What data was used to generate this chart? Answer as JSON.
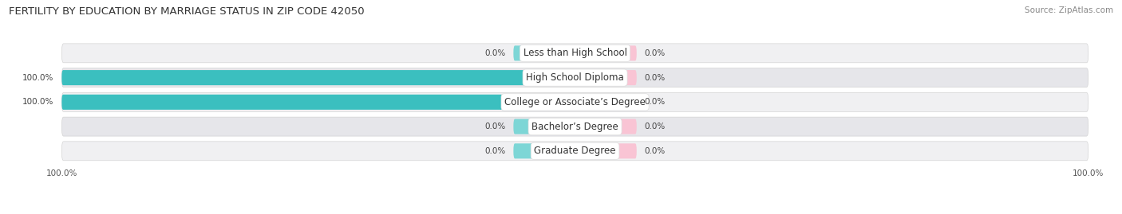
{
  "title": "FERTILITY BY EDUCATION BY MARRIAGE STATUS IN ZIP CODE 42050",
  "source": "Source: ZipAtlas.com",
  "categories": [
    "Less than High School",
    "High School Diploma",
    "College or Associate’s Degree",
    "Bachelor’s Degree",
    "Graduate Degree"
  ],
  "married_values": [
    0.0,
    100.0,
    100.0,
    0.0,
    0.0
  ],
  "unmarried_values": [
    0.0,
    0.0,
    0.0,
    0.0,
    0.0
  ],
  "married_color": "#3BBFBF",
  "unmarried_color": "#F5A0B8",
  "married_stub_color": "#7DD6D6",
  "unmarried_stub_color": "#F9C4D4",
  "row_bg_odd": "#F0F0F2",
  "row_bg_even": "#E6E6EA",
  "title_fontsize": 9.5,
  "source_fontsize": 7.5,
  "label_fontsize": 8.5,
  "value_fontsize": 7.5,
  "tick_fontsize": 7.5,
  "max_val": 100.0,
  "stub_val": 12.0,
  "background_color": "#FFFFFF"
}
